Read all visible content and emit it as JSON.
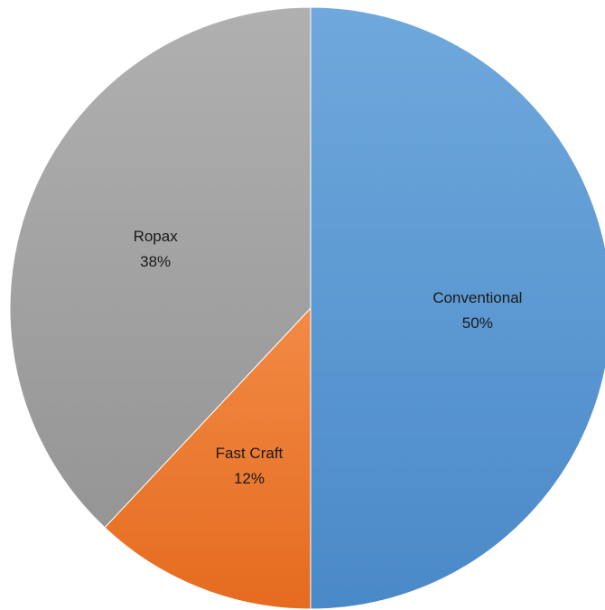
{
  "chart_data": {
    "type": "pie",
    "title": "",
    "start": "top",
    "direction": "clockwise",
    "slices": [
      {
        "label": "Conventional",
        "value": 50,
        "percent_label": "50%",
        "color": "#5b9bd5",
        "color_light": "#6fa8dc",
        "color_dark": "#4a89c8"
      },
      {
        "label": "Fast Craft",
        "value": 12,
        "percent_label": "12%",
        "color": "#ed7d31",
        "color_light": "#f28a45",
        "color_dark": "#e56b1f"
      },
      {
        "label": "Ropax",
        "value": 38,
        "percent_label": "38%",
        "color": "#a5a5a5",
        "color_light": "#b0b0b0",
        "color_dark": "#959595"
      }
    ],
    "legend": "none"
  }
}
